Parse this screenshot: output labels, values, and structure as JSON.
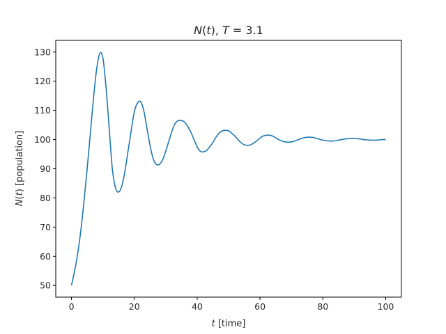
{
  "chart_data": {
    "type": "line",
    "title": {
      "italic_1": "N",
      "plain_1": "(",
      "italic_2": "t",
      "plain_2": "), ",
      "italic_3": "T",
      "plain_3": " = 3.1"
    },
    "xlabel": {
      "italic": "t",
      "plain": " [time]"
    },
    "ylabel": {
      "italic_1": "N",
      "plain_1": "(",
      "italic_2": "t",
      "plain_2": ") [population]"
    },
    "xlim": [
      -5,
      105
    ],
    "ylim": [
      46,
      134
    ],
    "x_ticks": [
      0,
      20,
      40,
      60,
      80,
      100
    ],
    "y_ticks": [
      50,
      60,
      70,
      80,
      90,
      100,
      110,
      120,
      130
    ],
    "grid": false,
    "series": [
      {
        "color": "#1f77b4",
        "x": [
          0,
          1,
          2,
          3,
          4,
          5,
          6,
          7,
          8,
          9,
          10,
          11,
          12,
          13,
          14,
          15,
          16,
          17,
          18,
          19,
          20,
          21,
          22,
          23,
          24,
          25,
          26,
          27,
          28,
          29,
          30,
          31,
          32,
          33,
          34,
          35,
          36,
          37,
          38,
          39,
          40,
          41,
          42,
          43,
          44,
          45,
          46,
          47,
          48,
          49,
          50,
          51,
          52,
          53,
          54,
          55,
          56,
          57,
          58,
          59,
          60,
          61,
          62,
          63,
          64,
          65,
          66,
          67,
          68,
          69,
          70,
          71,
          72,
          73,
          74,
          75,
          76,
          77,
          78,
          79,
          80,
          81,
          82,
          83,
          84,
          85,
          86,
          87,
          88,
          89,
          90,
          91,
          92,
          93,
          94,
          95,
          96,
          97,
          98,
          99,
          100
        ],
        "y": [
          50,
          55,
          61,
          69,
          79,
          90,
          102,
          114,
          124,
          129.5,
          128,
          118,
          104,
          90,
          83.5,
          82,
          84,
          89,
          96,
          103,
          109.5,
          112.5,
          113,
          110,
          104,
          98,
          93.5,
          91.5,
          91.5,
          93,
          96,
          99.5,
          103,
          105.5,
          106.5,
          106.5,
          106,
          104.5,
          102.5,
          100,
          97.5,
          96,
          95.8,
          96.3,
          97.5,
          99,
          100.8,
          102.2,
          103,
          103.2,
          103,
          102.2,
          101.2,
          100,
          98.9,
          98.2,
          98,
          98.2,
          98.8,
          99.6,
          100.5,
          101.2,
          101.5,
          101.5,
          101.2,
          100.6,
          100,
          99.5,
          99.2,
          99.1,
          99.2,
          99.5,
          99.9,
          100.3,
          100.6,
          100.8,
          100.8,
          100.7,
          100.4,
          100.1,
          99.8,
          99.6,
          99.5,
          99.5,
          99.6,
          99.8,
          100,
          100.2,
          100.3,
          100.4,
          100.4,
          100.3,
          100.2,
          100,
          99.9,
          99.8,
          99.8,
          99.8,
          99.9,
          100,
          100
        ]
      }
    ]
  }
}
